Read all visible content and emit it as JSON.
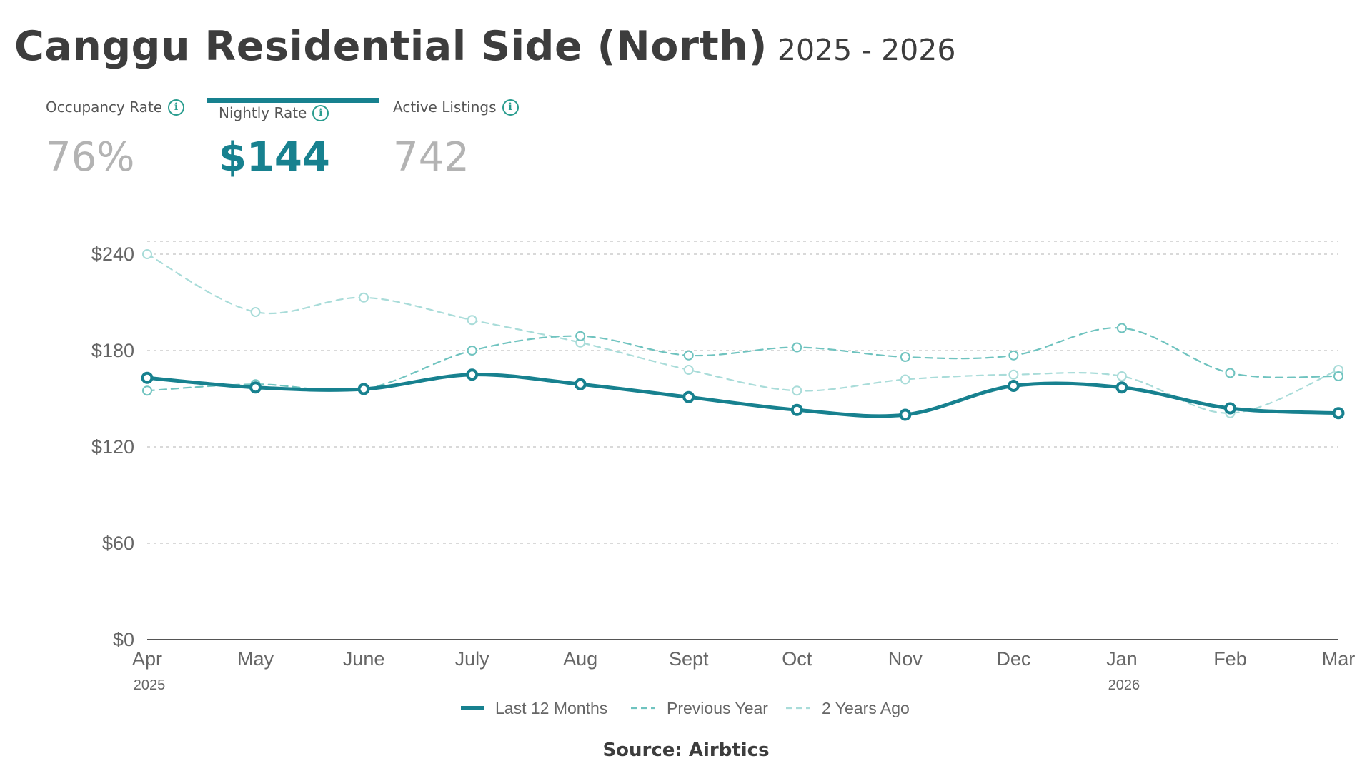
{
  "header": {
    "title": "Canggu Residential Side (North)",
    "subtitle": "2025 - 2026"
  },
  "metrics": [
    {
      "label": "Occupancy Rate",
      "value": "76%",
      "active": false
    },
    {
      "label": "Nightly Rate",
      "value": "$144",
      "active": true
    },
    {
      "label": "Active Listings",
      "value": "742",
      "active": false
    }
  ],
  "icons": {
    "info": "info-circle-icon"
  },
  "colors": {
    "accent": "#17818f",
    "previous_year": "#6fc3bf",
    "two_years_ago": "#a9dcd9",
    "grid": "#d9d9d9"
  },
  "chart_data": {
    "type": "line",
    "categories": [
      "Apr",
      "May",
      "June",
      "July",
      "Aug",
      "Sept",
      "Oct",
      "Nov",
      "Dec",
      "Jan",
      "Feb",
      "Mar"
    ],
    "year_labels": [
      {
        "index": 0,
        "label": "2025"
      },
      {
        "index": 9,
        "label": "2026"
      }
    ],
    "y_ticks": [
      0,
      60,
      120,
      180,
      240
    ],
    "y_tick_labels": [
      "$0",
      "$60",
      "$120",
      "$180",
      "$240"
    ],
    "ylim": [
      0,
      240
    ],
    "grid": true,
    "legend_position": "bottom-center",
    "series": [
      {
        "name": "Last 12 Months",
        "style": "solid",
        "values": [
          163,
          157,
          156,
          165,
          159,
          151,
          143,
          140,
          158,
          157,
          144,
          141
        ]
      },
      {
        "name": "Previous Year",
        "style": "dashed",
        "values": [
          155,
          159,
          156,
          180,
          189,
          177,
          182,
          176,
          177,
          194,
          166,
          164
        ]
      },
      {
        "name": "2 Years Ago",
        "style": "dashed",
        "values": [
          240,
          204,
          213,
          199,
          185,
          168,
          155,
          162,
          165,
          164,
          141,
          168
        ]
      }
    ]
  },
  "source": "Source: Airbtics"
}
